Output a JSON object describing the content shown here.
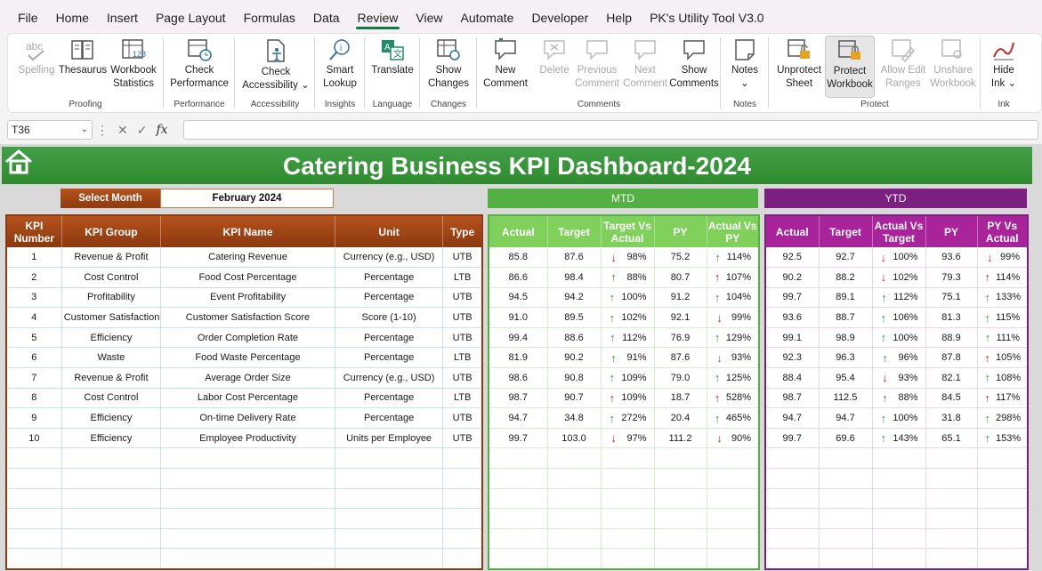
{
  "menu": [
    "File",
    "Home",
    "Insert",
    "Page Layout",
    "Formulas",
    "Data",
    "Review",
    "View",
    "Automate",
    "Developer",
    "Help",
    "PK's Utility Tool V3.0"
  ],
  "ribbon": {
    "spelling": "Spelling",
    "thesaurus": "Thesaurus",
    "workbook_stats_1": "Workbook",
    "workbook_stats_2": "Statistics",
    "proofing": "Proofing",
    "check_perf_1": "Check",
    "check_perf_2": "Performance",
    "performance": "Performance",
    "check_acc_1": "Check",
    "check_acc_2": "Accessibility",
    "accessibility": "Accessibility",
    "smart_1": "Smart",
    "smart_2": "Lookup",
    "insights": "Insights",
    "translate": "Translate",
    "language": "Language",
    "show_changes_1": "Show",
    "show_changes_2": "Changes",
    "changes": "Changes",
    "new_comment_1": "New",
    "new_comment_2": "Comment",
    "delete": "Delete",
    "prev_comment_1": "Previous",
    "prev_comment_2": "Comment",
    "next_comment_1": "Next",
    "next_comment_2": "Comment",
    "show_comments_1": "Show",
    "show_comments_2": "Comments",
    "comments": "Comments",
    "notes_btn": "Notes",
    "notes": "Notes",
    "unprotect_1": "Unprotect",
    "unprotect_2": "Sheet",
    "protect_wb_1": "Protect",
    "protect_wb_2": "Workbook",
    "allow_edit_1": "Allow Edit",
    "allow_edit_2": "Ranges",
    "unshare_1": "Unshare",
    "unshare_2": "Workbook",
    "protect": "Protect",
    "hide_ink_1": "Hide",
    "hide_ink_2": "Ink",
    "ink": "Ink"
  },
  "formula_bar": {
    "name_box": "T36",
    "fx": "fx",
    "content": ""
  },
  "dashboard": {
    "title": "Catering Business KPI Dashboard-2024",
    "select_month_label": "Select Month",
    "select_month_value": "February 2024",
    "mtd_label": "MTD",
    "ytd_label": "YTD",
    "left_headers": [
      "KPI Number",
      "KPI Group",
      "KPI Name",
      "Unit",
      "Type"
    ],
    "mtd_headers": [
      "Actual",
      "Target",
      "Target Vs Actual",
      "PY",
      "Actual Vs PY"
    ],
    "ytd_headers": [
      "Actual",
      "Target",
      "Actual Vs Target",
      "PY",
      "PY Vs Actual"
    ],
    "rows": [
      {
        "num": "1",
        "group": "Revenue & Profit",
        "name": "Catering Revenue",
        "unit": "Currency (e.g., USD)",
        "type": "UTB",
        "mtd": {
          "actual": "85.8",
          "target": "87.6",
          "tva": "98%",
          "tva_dir": "down",
          "py": "75.2",
          "avp": "114%",
          "avp_dir": "up"
        },
        "ytd": {
          "actual": "92.5",
          "target": "92.7",
          "avt": "100%",
          "avt_dir": "down",
          "py": "93.6",
          "pva": "99%",
          "pva_dir": "down"
        }
      },
      {
        "num": "2",
        "group": "Cost Control",
        "name": "Food Cost Percentage",
        "unit": "Percentage",
        "type": "LTB",
        "mtd": {
          "actual": "86.6",
          "target": "98.4",
          "tva": "88%",
          "tva_dir": "up",
          "py": "80.7",
          "avp": "107%",
          "avp_dir": "up-red"
        },
        "ytd": {
          "actual": "90.2",
          "target": "88.2",
          "avt": "102%",
          "avt_dir": "down",
          "py": "79.3",
          "pva": "114%",
          "pva_dir": "up-red"
        }
      },
      {
        "num": "3",
        "group": "Profitability",
        "name": "Event Profitability",
        "unit": "Percentage",
        "type": "UTB",
        "mtd": {
          "actual": "94.5",
          "target": "94.2",
          "tva": "100%",
          "tva_dir": "up",
          "py": "91.2",
          "avp": "104%",
          "avp_dir": "up"
        },
        "ytd": {
          "actual": "99.7",
          "target": "89.1",
          "avt": "112%",
          "avt_dir": "up",
          "py": "75.1",
          "pva": "133%",
          "pva_dir": "up"
        }
      },
      {
        "num": "4",
        "group": "Customer Satisfaction",
        "name": "Customer Satisfaction Score",
        "unit": "Score (1-10)",
        "type": "UTB",
        "mtd": {
          "actual": "91.0",
          "target": "89.5",
          "tva": "102%",
          "tva_dir": "up",
          "py": "92.1",
          "avp": "99%",
          "avp_dir": "down"
        },
        "ytd": {
          "actual": "93.6",
          "target": "88.7",
          "avt": "106%",
          "avt_dir": "up",
          "py": "81.3",
          "pva": "115%",
          "pva_dir": "up"
        }
      },
      {
        "num": "5",
        "group": "Efficiency",
        "name": "Order Completion Rate",
        "unit": "Percentage",
        "type": "UTB",
        "mtd": {
          "actual": "99.4",
          "target": "88.6",
          "tva": "112%",
          "tva_dir": "up",
          "py": "76.9",
          "avp": "129%",
          "avp_dir": "up"
        },
        "ytd": {
          "actual": "99.1",
          "target": "98.9",
          "avt": "100%",
          "avt_dir": "up",
          "py": "88.9",
          "pva": "111%",
          "pva_dir": "up"
        }
      },
      {
        "num": "6",
        "group": "Waste",
        "name": "Food Waste Percentage",
        "unit": "Percentage",
        "type": "LTB",
        "mtd": {
          "actual": "81.9",
          "target": "90.2",
          "tva": "91%",
          "tva_dir": "up",
          "py": "87.6",
          "avp": "93%",
          "avp_dir": "down-green"
        },
        "ytd": {
          "actual": "92.3",
          "target": "96.3",
          "avt": "96%",
          "avt_dir": "up",
          "py": "87.8",
          "pva": "105%",
          "pva_dir": "up-red"
        }
      },
      {
        "num": "7",
        "group": "Revenue & Profit",
        "name": "Average Order Size",
        "unit": "Currency (e.g., USD)",
        "type": "UTB",
        "mtd": {
          "actual": "98.6",
          "target": "90.8",
          "tva": "109%",
          "tva_dir": "up",
          "py": "79.0",
          "avp": "125%",
          "avp_dir": "up"
        },
        "ytd": {
          "actual": "88.4",
          "target": "95.4",
          "avt": "93%",
          "avt_dir": "down",
          "py": "82.1",
          "pva": "108%",
          "pva_dir": "up"
        }
      },
      {
        "num": "8",
        "group": "Cost Control",
        "name": "Labor Cost Percentage",
        "unit": "Percentage",
        "type": "LTB",
        "mtd": {
          "actual": "98.7",
          "target": "90.7",
          "tva": "109%",
          "tva_dir": "up-red",
          "py": "18.7",
          "avp": "528%",
          "avp_dir": "up-red"
        },
        "ytd": {
          "actual": "98.7",
          "target": "112.5",
          "avt": "88%",
          "avt_dir": "up",
          "py": "84.5",
          "pva": "117%",
          "pva_dir": "up-red"
        }
      },
      {
        "num": "9",
        "group": "Efficiency",
        "name": "On-time Delivery Rate",
        "unit": "Percentage",
        "type": "UTB",
        "mtd": {
          "actual": "94.7",
          "target": "34.8",
          "tva": "272%",
          "tva_dir": "up",
          "py": "20.4",
          "avp": "465%",
          "avp_dir": "up"
        },
        "ytd": {
          "actual": "94.7",
          "target": "94.7",
          "avt": "100%",
          "avt_dir": "up",
          "py": "31.8",
          "pva": "298%",
          "pva_dir": "up"
        }
      },
      {
        "num": "10",
        "group": "Efficiency",
        "name": "Employee Productivity",
        "unit": "Units per Employee",
        "type": "UTB",
        "mtd": {
          "actual": "99.7",
          "target": "103.0",
          "tva": "97%",
          "tva_dir": "down",
          "py": "111.2",
          "avp": "90%",
          "avp_dir": "down"
        },
        "ytd": {
          "actual": "99.7",
          "target": "69.6",
          "avt": "143%",
          "avt_dir": "up",
          "py": "65.1",
          "pva": "153%",
          "pva_dir": "up"
        }
      }
    ]
  }
}
